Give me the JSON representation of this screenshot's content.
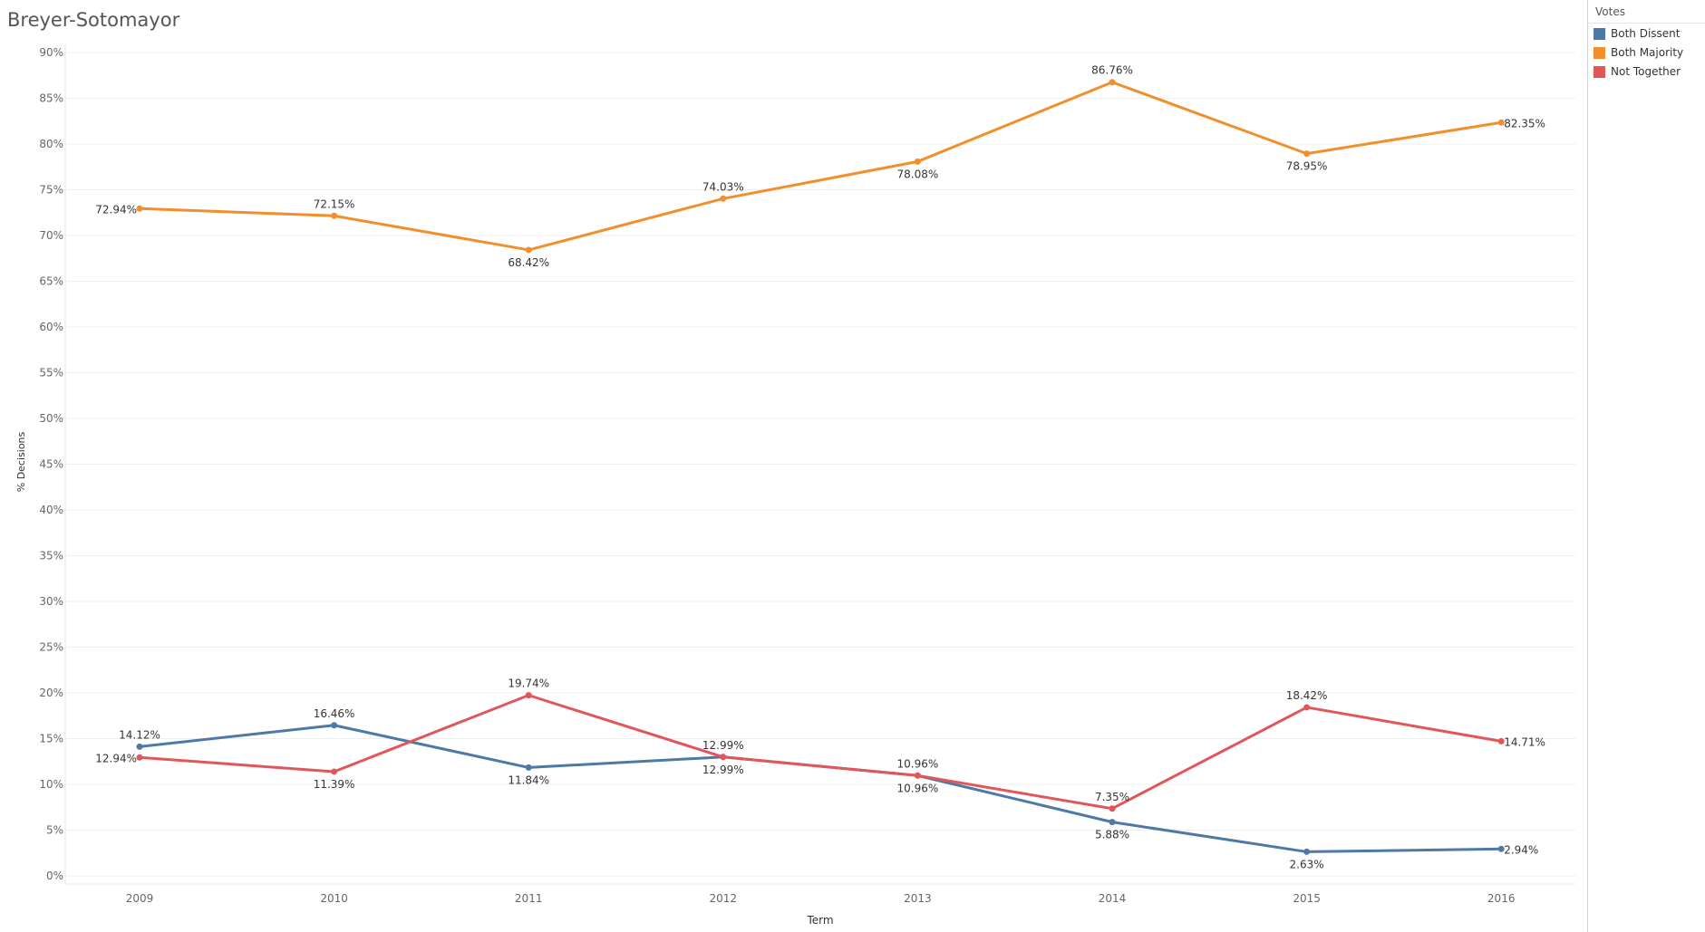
{
  "title": "Breyer-Sotomayor",
  "legend": {
    "title": "Votes",
    "items": [
      {
        "label": "Both Dissent",
        "color": "#4e79a7"
      },
      {
        "label": "Both Majority",
        "color": "#f28e2b"
      },
      {
        "label": "Not Together",
        "color": "#e15759"
      }
    ]
  },
  "chart_data": {
    "type": "line",
    "title": "Breyer-Sotomayor",
    "xlabel": "Term",
    "ylabel": "% Decisions",
    "categories": [
      "2009",
      "2010",
      "2011",
      "2012",
      "2013",
      "2014",
      "2015",
      "2016"
    ],
    "ylim": [
      0,
      90
    ],
    "yticks": [
      0,
      5,
      10,
      15,
      20,
      25,
      30,
      35,
      40,
      45,
      50,
      55,
      60,
      65,
      70,
      75,
      80,
      85,
      90
    ],
    "ytick_labels": [
      "0%",
      "5%",
      "10%",
      "15%",
      "20%",
      "25%",
      "30%",
      "35%",
      "40%",
      "45%",
      "50%",
      "55%",
      "60%",
      "65%",
      "70%",
      "75%",
      "80%",
      "85%",
      "90%"
    ],
    "grid": true,
    "legend_position": "top-right",
    "series": [
      {
        "name": "Both Dissent",
        "color": "#4e79a7",
        "values": [
          14.12,
          16.46,
          11.84,
          12.99,
          10.96,
          5.88,
          2.63,
          2.94
        ],
        "labels": [
          "14.12%",
          "16.46%",
          "11.84%",
          "12.99%",
          "10.96%",
          "5.88%",
          "2.63%",
          "2.94%"
        ]
      },
      {
        "name": "Both Majority",
        "color": "#f28e2b",
        "values": [
          72.94,
          72.15,
          68.42,
          74.03,
          78.08,
          86.76,
          78.95,
          82.35
        ],
        "labels": [
          "72.94%",
          "72.15%",
          "68.42%",
          "74.03%",
          "78.08%",
          "86.76%",
          "78.95%",
          "82.35%"
        ]
      },
      {
        "name": "Not Together",
        "color": "#e15759",
        "values": [
          12.94,
          11.39,
          19.74,
          12.99,
          10.96,
          7.35,
          18.42,
          14.71
        ],
        "labels": [
          "12.94%",
          "11.39%",
          "19.74%",
          "12.99%",
          "10.96%",
          "7.35%",
          "18.42%",
          "14.71%"
        ]
      }
    ]
  }
}
